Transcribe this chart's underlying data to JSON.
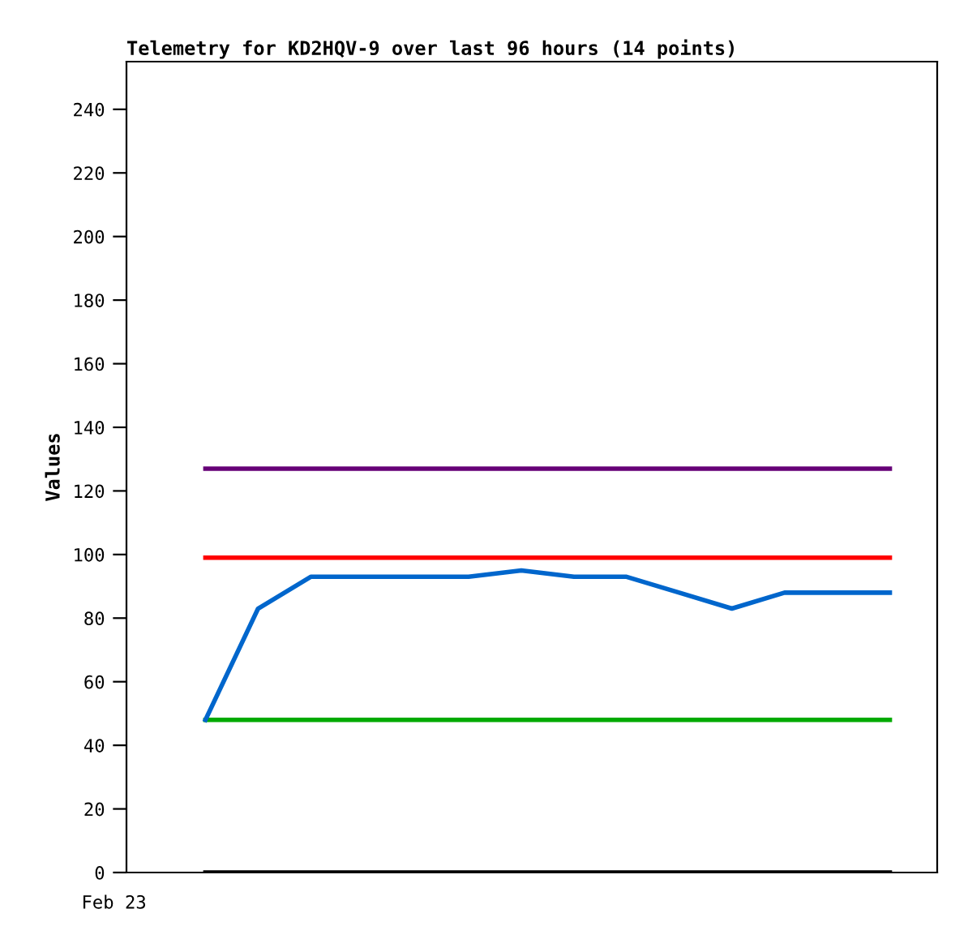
{
  "chart_data": {
    "type": "line",
    "title": "Telemetry for KD2HQV-9 over last 96 hours (14 points)",
    "ylabel": "Values",
    "annotations": [
      "Feb 23"
    ],
    "categories": [
      null,
      null,
      null,
      null,
      null,
      null,
      null,
      null,
      null,
      null,
      null,
      null,
      null,
      null
    ],
    "ylim": [
      0,
      255
    ],
    "yticks": [
      0,
      20,
      40,
      60,
      80,
      100,
      120,
      140,
      160,
      180,
      200,
      220,
      240
    ],
    "marker": "none",
    "line_style": "solid",
    "series": [
      {
        "color": "#660077",
        "values": [
          127,
          127,
          127,
          127,
          127,
          127,
          127,
          127,
          127,
          127,
          127,
          127,
          127,
          127
        ]
      },
      {
        "color": "#ff0000",
        "values": [
          99,
          99,
          99,
          99,
          99,
          99,
          99,
          99,
          99,
          99,
          99,
          99,
          99,
          99
        ]
      },
      {
        "color": "#00aa00",
        "values": [
          48,
          48,
          48,
          48,
          48,
          48,
          48,
          48,
          48,
          48,
          48,
          48,
          48,
          48
        ]
      },
      {
        "color": "#000000",
        "values": [
          0,
          0,
          0,
          0,
          0,
          0,
          0,
          0,
          0,
          0,
          0,
          0,
          0,
          0
        ]
      },
      {
        "color": "#0066cc",
        "values": [
          48,
          83,
          93,
          93,
          93,
          93,
          95,
          93,
          93,
          88,
          83,
          88,
          88,
          88
        ]
      }
    ]
  }
}
